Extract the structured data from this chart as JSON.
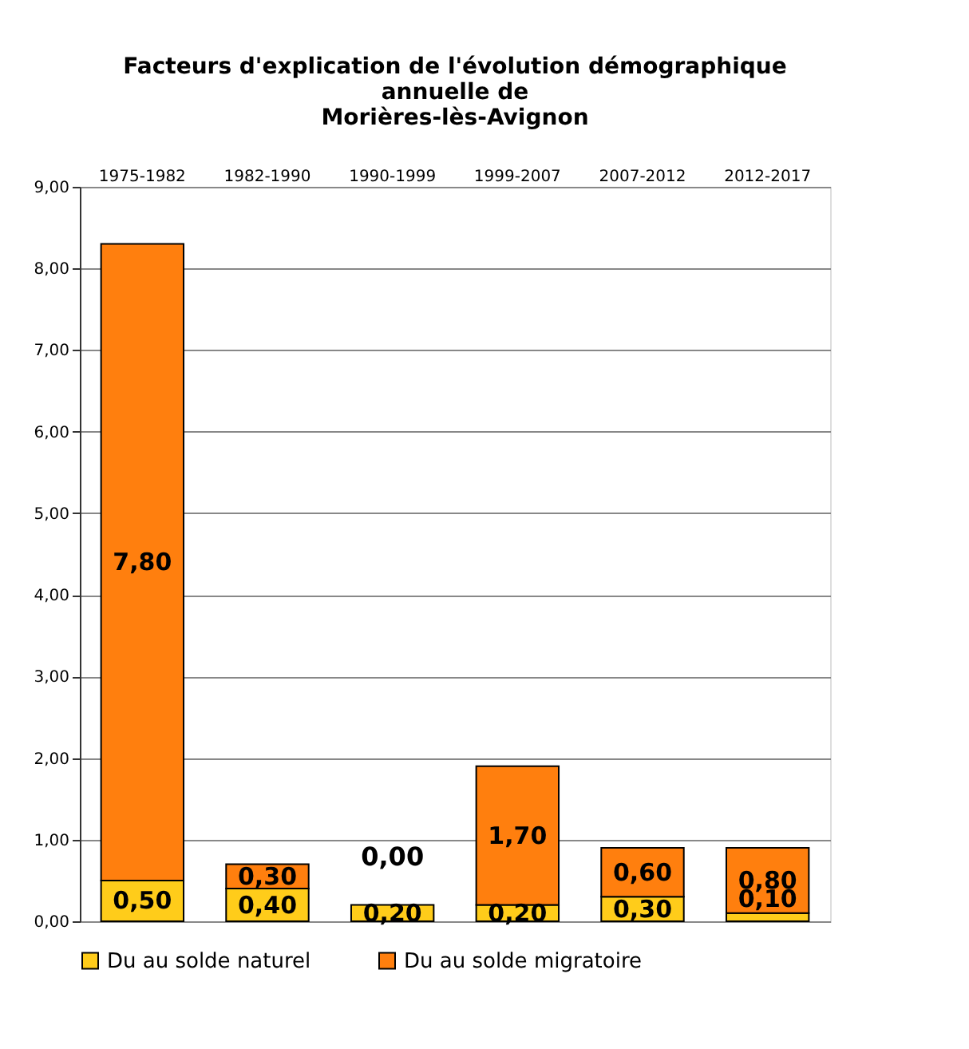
{
  "chart_data": {
    "type": "bar",
    "stacked": true,
    "title": "Facteurs d'explication de l'évolution démographique\nannuelle de\nMorières-lès-Avignon",
    "categories": [
      "1975-1982",
      "1982-1990",
      "1990-1999",
      "1999-2007",
      "2007-2012",
      "2012-2017"
    ],
    "series": [
      {
        "name": "Du au solde naturel",
        "color": "#ffcc1a",
        "values": [
          0.5,
          0.4,
          0.2,
          0.2,
          0.3,
          0.1
        ],
        "value_labels": [
          "0,50",
          "0,40",
          "0,20",
          "0,20",
          "0,30",
          "0,10"
        ]
      },
      {
        "name": "Du au solde migratoire",
        "color": "#ff7f0e",
        "values": [
          7.8,
          0.3,
          0.0,
          1.7,
          0.6,
          0.8
        ],
        "value_labels": [
          "7,80",
          "0,30",
          "0,00",
          "1,70",
          "0,60",
          "0,80"
        ]
      }
    ],
    "ylim": [
      0,
      9
    ],
    "yticks": [
      {
        "value": 0,
        "label": "0,00"
      },
      {
        "value": 1,
        "label": "1,00"
      },
      {
        "value": 2,
        "label": "2,00"
      },
      {
        "value": 3,
        "label": "3,00"
      },
      {
        "value": 4,
        "label": "4,00"
      },
      {
        "value": 5,
        "label": "5,00"
      },
      {
        "value": 6,
        "label": "6,00"
      },
      {
        "value": 7,
        "label": "7,00"
      },
      {
        "value": 8,
        "label": "8,00"
      },
      {
        "value": 9,
        "label": "9,00"
      }
    ],
    "grid": "y",
    "legend": "bottom"
  }
}
